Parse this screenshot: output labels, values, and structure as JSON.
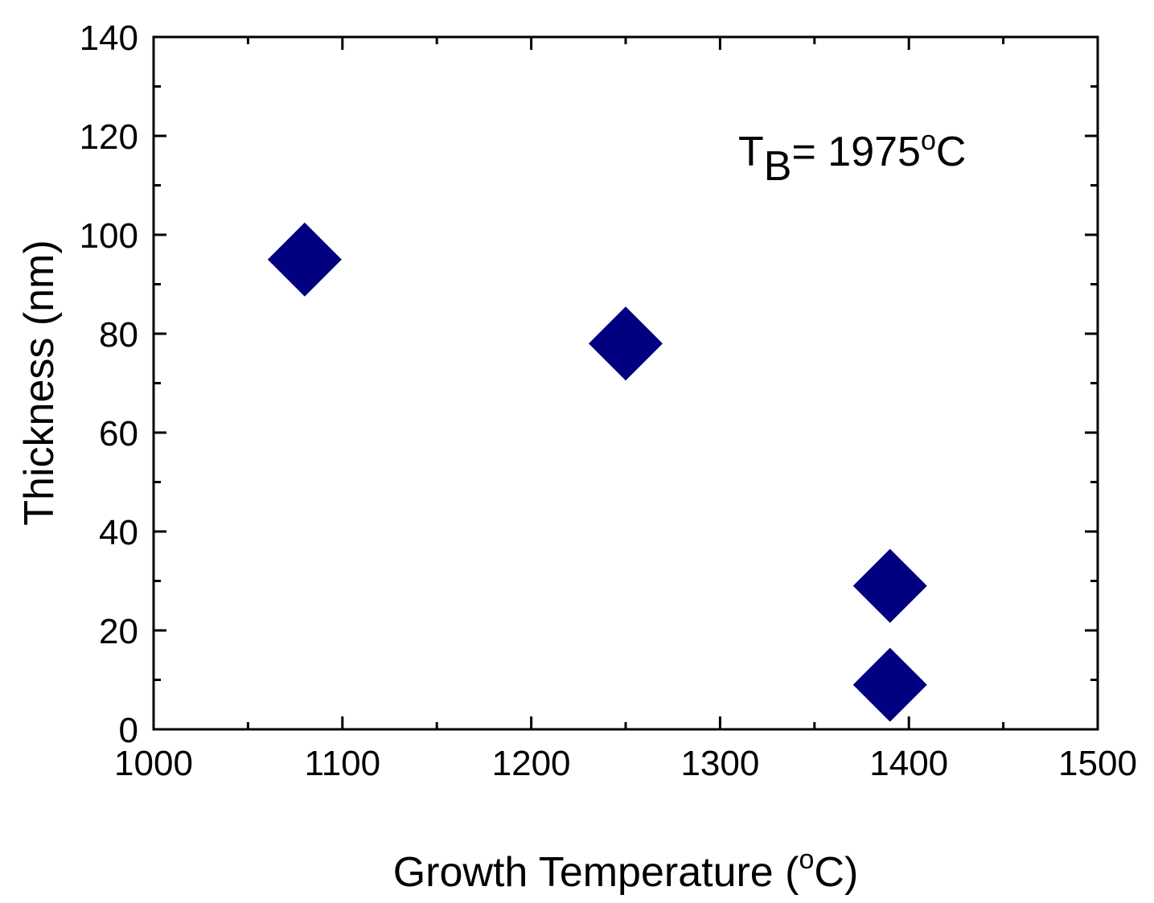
{
  "chart_data": {
    "type": "scatter",
    "title": "",
    "xlabel": "Growth Temperature (",
    "xlabel_sup": "o",
    "xlabel_end": "C)",
    "ylabel": "Thickness (nm)",
    "xlim": [
      1000,
      1500
    ],
    "ylim": [
      0,
      140
    ],
    "x_ticks": [
      1000,
      1100,
      1200,
      1300,
      1400,
      1500
    ],
    "y_ticks": [
      0,
      20,
      40,
      60,
      80,
      100,
      120,
      140
    ],
    "x_minor_step": 50,
    "y_minor_step": 10,
    "grid": false,
    "series": [
      {
        "name": "Thickness",
        "marker": "diamond",
        "color": "#000080",
        "points": [
          {
            "x": 1080,
            "y": 95
          },
          {
            "x": 1250,
            "y": 78
          },
          {
            "x": 1390,
            "y": 29
          },
          {
            "x": 1390,
            "y": 9
          }
        ]
      }
    ],
    "annotation": {
      "prefix": "T",
      "subscript": "B",
      "value": "= 1975",
      "sup": "o",
      "unit": "C"
    }
  }
}
